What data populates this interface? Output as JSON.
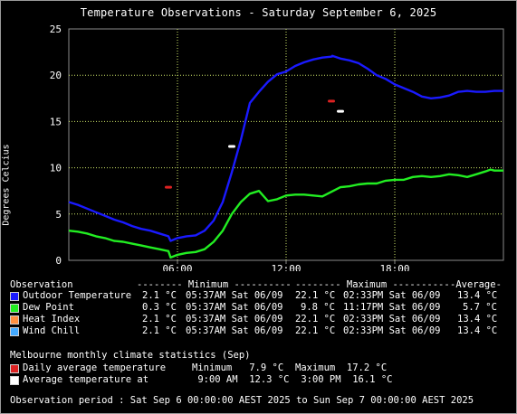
{
  "chart_data": {
    "type": "line",
    "title": "Temperature Observations - Saturday September 6, 2025",
    "ylabel": "Degrees Celcius",
    "xlabel": "",
    "ylim": [
      0,
      25
    ],
    "yticks": [
      "0",
      "5",
      "10",
      "15",
      "20",
      "25"
    ],
    "xlim_hours": [
      0,
      24
    ],
    "xticks": [
      {
        "hour": 6,
        "label": "06:00"
      },
      {
        "hour": 12,
        "label": "12:00"
      },
      {
        "hour": 18,
        "label": "18:00"
      }
    ],
    "grid": true,
    "series": [
      {
        "name": "Outdoor Temperature",
        "color": "#1a1aff",
        "x": [
          0,
          0.5,
          1,
          1.5,
          2,
          2.5,
          3,
          3.5,
          4,
          4.5,
          5,
          5.5,
          5.62,
          6,
          6.5,
          7,
          7.5,
          8,
          8.5,
          9,
          9.5,
          10,
          10.5,
          11,
          11.5,
          12,
          12.5,
          13,
          13.5,
          14,
          14.5,
          14.55,
          15,
          15.5,
          16,
          16.5,
          17,
          17.5,
          18,
          18.5,
          19,
          19.5,
          20,
          20.5,
          21,
          21.5,
          22,
          22.5,
          23,
          23.5,
          24
        ],
        "y": [
          6.3,
          6.0,
          5.6,
          5.2,
          4.8,
          4.4,
          4.1,
          3.7,
          3.4,
          3.2,
          2.9,
          2.6,
          2.1,
          2.4,
          2.6,
          2.7,
          3.2,
          4.3,
          6.3,
          9.5,
          13.0,
          17.0,
          18.2,
          19.3,
          20.1,
          20.4,
          21.0,
          21.4,
          21.7,
          21.9,
          22.0,
          22.1,
          21.8,
          21.6,
          21.3,
          20.7,
          20.0,
          19.6,
          19.0,
          18.6,
          18.2,
          17.7,
          17.5,
          17.6,
          17.8,
          18.2,
          18.3,
          18.2,
          18.2,
          18.3,
          18.3
        ]
      },
      {
        "name": "Dew Point",
        "color": "#22ee22",
        "x": [
          0,
          0.5,
          1,
          1.5,
          2,
          2.5,
          3,
          3.5,
          4,
          4.5,
          5,
          5.5,
          5.62,
          6,
          6.5,
          7,
          7.5,
          8,
          8.5,
          9,
          9.5,
          10,
          10.5,
          11,
          11.5,
          12,
          12.5,
          13,
          13.5,
          14,
          14.5,
          15,
          15.5,
          16,
          16.5,
          17,
          17.5,
          18,
          18.5,
          19,
          19.5,
          20,
          20.5,
          21,
          21.5,
          22,
          22.5,
          23,
          23.29,
          23.5,
          24
        ],
        "y": [
          3.2,
          3.1,
          2.9,
          2.6,
          2.4,
          2.1,
          2.0,
          1.8,
          1.6,
          1.4,
          1.2,
          1.0,
          0.3,
          0.6,
          0.8,
          0.9,
          1.2,
          2.0,
          3.2,
          5.0,
          6.3,
          7.2,
          7.5,
          6.4,
          6.6,
          7.0,
          7.1,
          7.1,
          7.0,
          6.9,
          7.4,
          7.9,
          8.0,
          8.2,
          8.3,
          8.3,
          8.6,
          8.7,
          8.7,
          9.0,
          9.1,
          9.0,
          9.1,
          9.3,
          9.2,
          9.0,
          9.3,
          9.6,
          9.8,
          9.7,
          9.7
        ]
      },
      {
        "name": "Daily average temperature",
        "color": "#dd2222",
        "markers": [
          {
            "x": 5.5,
            "y": 7.9
          },
          {
            "x": 14.5,
            "y": 17.2
          }
        ]
      },
      {
        "name": "Average temperature at",
        "color": "#ffffff",
        "markers": [
          {
            "x": 9.0,
            "y": 12.3
          },
          {
            "x": 15.0,
            "y": 16.1
          }
        ]
      }
    ]
  },
  "legend": {
    "header": {
      "observation": "Observation",
      "minimum": "-------- Minimum ----------",
      "maximum": "-------- Maximum ----------",
      "average": "-Average-"
    },
    "rows": [
      {
        "label": "Outdoor Temperature",
        "color": "#1a1aff",
        "min": "2.1 °C",
        "min_time": "05:37AM Sat 06/09",
        "max": "22.1 °C",
        "max_time": "02:33PM Sat 06/09",
        "avg": "13.4 °C"
      },
      {
        "label": "Dew Point",
        "color": "#22ee22",
        "min": "0.3 °C",
        "min_time": "05:37AM Sat 06/09",
        "max": "9.8 °C",
        "max_time": "11:17PM Sat 06/09",
        "avg": "5.7 °C"
      },
      {
        "label": "Heat Index",
        "color": "#ff9040",
        "min": "2.1 °C",
        "min_time": "05:37AM Sat 06/09",
        "max": "22.1 °C",
        "max_time": "02:33PM Sat 06/09",
        "avg": "13.4 °C"
      },
      {
        "label": "Wind Chill",
        "color": "#44aaff",
        "min": "2.1 °C",
        "min_time": "05:37AM Sat 06/09",
        "max": "22.1 °C",
        "max_time": "02:33PM Sat 06/09",
        "avg": "13.4 °C"
      }
    ]
  },
  "climate": {
    "heading": "Melbourne monthly climate statistics (Sep)",
    "rows": [
      {
        "label": "Daily average temperature",
        "color": "#dd2222",
        "text1": "Minimum   7.9 °C",
        "text2": "Maximum  17.2 °C"
      },
      {
        "label": "Average temperature at",
        "color": "#ffffff",
        "text1": " 9:00 AM  12.3 °C",
        "text2": " 3:00 PM  16.1 °C"
      }
    ]
  },
  "footer": "Observation period : Sat Sep 6 00:00:00 AEST 2025 to Sun Sep 7 00:00:00 AEST 2025"
}
